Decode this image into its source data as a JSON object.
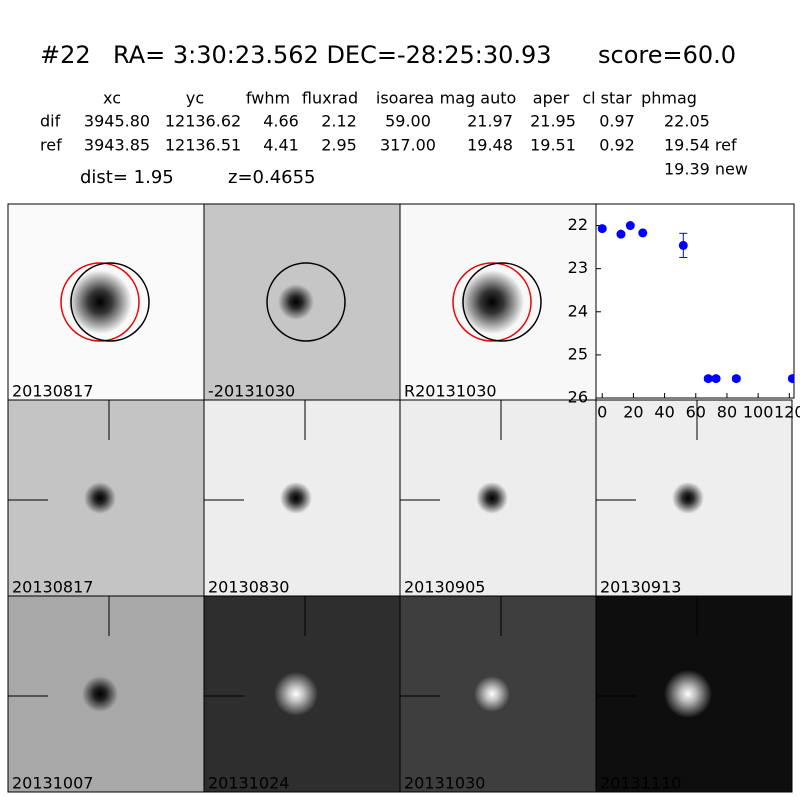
{
  "header": {
    "id": "#22",
    "coords": "RA= 3:30:23.562 DEC=-28:25:30.93",
    "score": "score=60.0"
  },
  "table": {
    "columns": [
      "xc",
      "yc",
      "fwhm",
      "fluxrad",
      "isoarea",
      "mag auto",
      "aper",
      "cl star",
      "phmag"
    ],
    "rows": [
      [
        "dif",
        "3945.80",
        "12136.62",
        "4.66",
        "2.12",
        "59.00",
        "21.97",
        "21.95",
        "0.97",
        "22.05"
      ],
      [
        "ref",
        "3943.85",
        "12136.51",
        "4.41",
        "2.95",
        "317.00",
        "19.48",
        "19.51",
        "0.92",
        "19.54 ref"
      ]
    ],
    "extra": "19.39 new"
  },
  "dist": "dist=  1.95",
  "z": "z=0.4655",
  "stamps": [
    {
      "label": "20130817"
    },
    {
      "label": "-20131030"
    },
    {
      "label": "R20131030"
    },
    {
      "label": "20130817",
      "label_color": "#ff0000"
    },
    {
      "label": "20130830"
    },
    {
      "label": "20130905"
    },
    {
      "label": "20130913"
    },
    {
      "label": "20131007"
    },
    {
      "label": "20131024"
    },
    {
      "label": "20131030"
    },
    {
      "label": "20131110"
    }
  ],
  "chart_data": {
    "type": "scatter",
    "color": "#0000ff",
    "x": [
      0,
      12,
      18,
      26,
      52,
      68,
      73,
      86,
      122
    ],
    "series": [
      {
        "values": [
          22.07,
          22.2,
          22.0,
          22.17,
          22.46,
          25.55,
          25.55,
          25.55,
          25.55
        ],
        "errors": [
          0.03,
          0.04,
          0.03,
          0.04,
          0.28,
          0.05,
          0.05,
          0.05,
          0.05
        ]
      }
    ],
    "xlim": [
      -4,
      123
    ],
    "ylim": [
      21.5,
      26
    ],
    "y_inverted": true,
    "xticks": [
      0,
      20,
      40,
      60,
      80,
      100,
      120
    ],
    "yticks": [
      22,
      23,
      24,
      25,
      26
    ]
  }
}
